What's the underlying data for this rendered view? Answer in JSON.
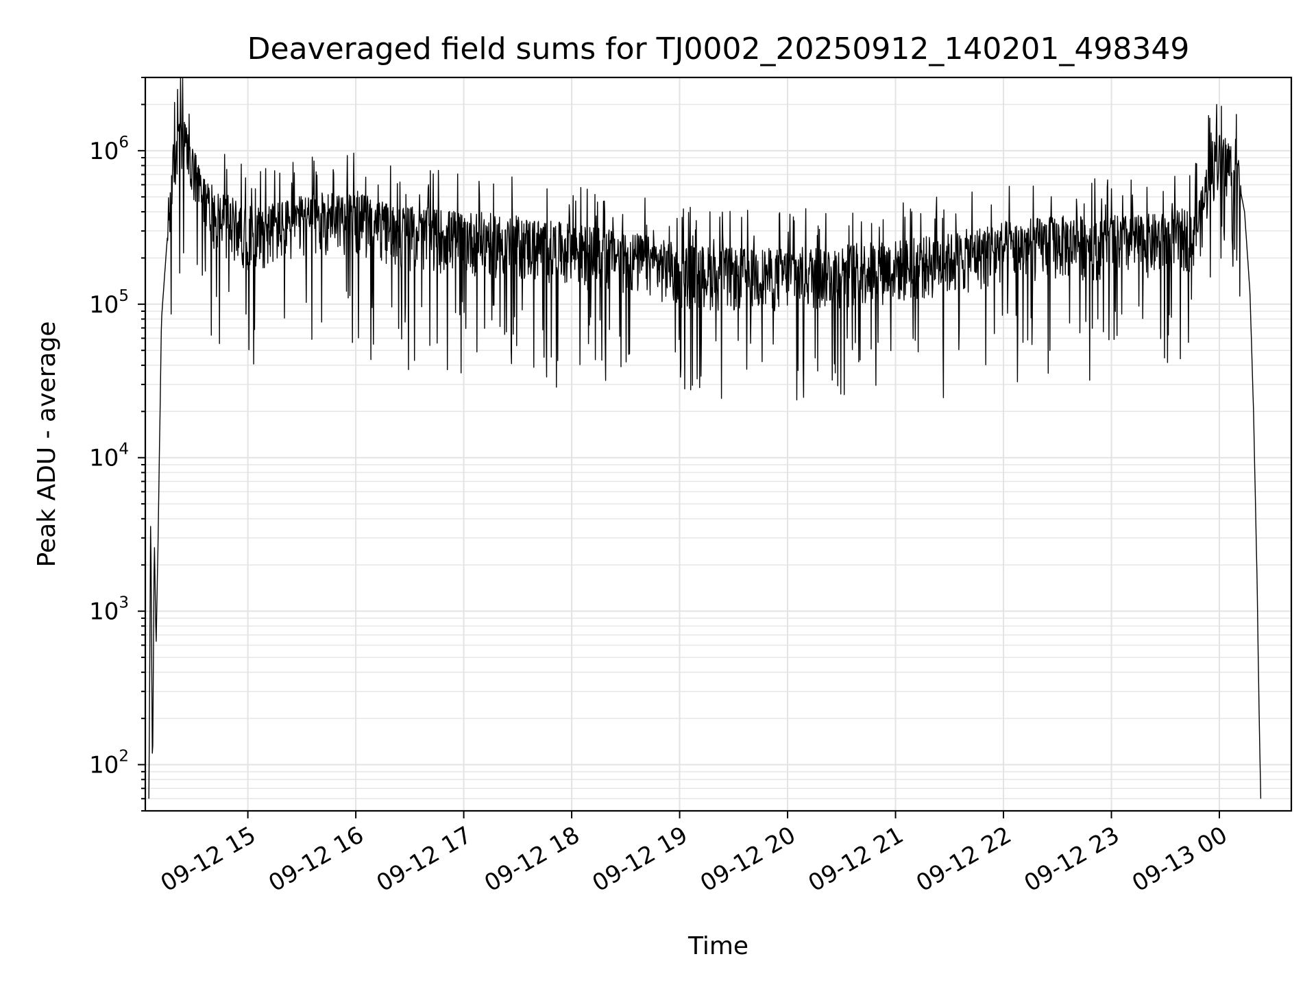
{
  "chart_data": {
    "type": "line",
    "title": "Deaveraged field sums for TJ0002_20250912_140201_498349",
    "xlabel": "Time",
    "ylabel": "Peak ADU - average",
    "yscale": "log",
    "grid": true,
    "legend": "none",
    "xlim": [
      "2025-09-12 14:03",
      "2025-09-13 00:40"
    ],
    "ylim": [
      50,
      3000000
    ],
    "x_ticks": [
      {
        "value": "2025-09-12 15:00",
        "label": "09-12 15"
      },
      {
        "value": "2025-09-12 16:00",
        "label": "09-12 16"
      },
      {
        "value": "2025-09-12 17:00",
        "label": "09-12 17"
      },
      {
        "value": "2025-09-12 18:00",
        "label": "09-12 18"
      },
      {
        "value": "2025-09-12 19:00",
        "label": "09-12 19"
      },
      {
        "value": "2025-09-12 20:00",
        "label": "09-12 20"
      },
      {
        "value": "2025-09-12 21:00",
        "label": "09-12 21"
      },
      {
        "value": "2025-09-12 22:00",
        "label": "09-12 22"
      },
      {
        "value": "2025-09-12 23:00",
        "label": "09-12 23"
      },
      {
        "value": "2025-09-13 00:00",
        "label": "09-13 00"
      }
    ],
    "y_ticks": [
      {
        "value": 100,
        "base": "10",
        "exp": "2"
      },
      {
        "value": 1000,
        "base": "10",
        "exp": "3"
      },
      {
        "value": 10000,
        "base": "10",
        "exp": "4"
      },
      {
        "value": 100000,
        "base": "10",
        "exp": "5"
      },
      {
        "value": 1000000,
        "base": "10",
        "exp": "6"
      }
    ],
    "line_color": "#000000",
    "series": [
      {
        "x": [
          "2025-09-12 14:05",
          "2025-09-12 14:06",
          "2025-09-12 14:07",
          "2025-09-12 14:08",
          "2025-09-12 14:09",
          "2025-09-12 14:10",
          "2025-09-12 14:12",
          "2025-09-12 14:15",
          "2025-09-12 14:18",
          "2025-09-12 14:20",
          "2025-09-12 14:23",
          "2025-09-12 14:26",
          "2025-09-12 14:30",
          "2025-09-12 14:35",
          "2025-09-12 14:40",
          "2025-09-12 14:45",
          "2025-09-12 14:50",
          "2025-09-12 15:00",
          "2025-09-12 15:15",
          "2025-09-12 15:30",
          "2025-09-12 15:45",
          "2025-09-12 16:00",
          "2025-09-12 16:15",
          "2025-09-12 16:30",
          "2025-09-12 17:00",
          "2025-09-12 17:30",
          "2025-09-12 18:00",
          "2025-09-12 18:30",
          "2025-09-12 19:00",
          "2025-09-12 19:30",
          "2025-09-12 20:00",
          "2025-09-12 20:30",
          "2025-09-12 21:00",
          "2025-09-12 21:30",
          "2025-09-12 22:00",
          "2025-09-12 22:30",
          "2025-09-12 23:00",
          "2025-09-12 23:30",
          "2025-09-12 23:45",
          "2025-09-12 23:50",
          "2025-09-12 23:55",
          "2025-09-13 00:00",
          "2025-09-13 00:05",
          "2025-09-13 00:10",
          "2025-09-13 00:14",
          "2025-09-13 00:17",
          "2025-09-13 00:19",
          "2025-09-13 00:21",
          "2025-09-13 00:22",
          "2025-09-13 00:23"
        ],
        "y": [
          60,
          4400,
          80,
          3000,
          600,
          2500,
          80000,
          250000,
          700000,
          1000000,
          1200000,
          1000000,
          700000,
          500000,
          420000,
          380000,
          350000,
          300000,
          320000,
          350000,
          380000,
          380000,
          320000,
          300000,
          280000,
          260000,
          230000,
          210000,
          170000,
          160000,
          160000,
          170000,
          180000,
          200000,
          240000,
          260000,
          260000,
          270000,
          300000,
          380000,
          800000,
          900000,
          850000,
          700000,
          400000,
          120000,
          20000,
          1500,
          250,
          60
        ]
      }
    ]
  }
}
